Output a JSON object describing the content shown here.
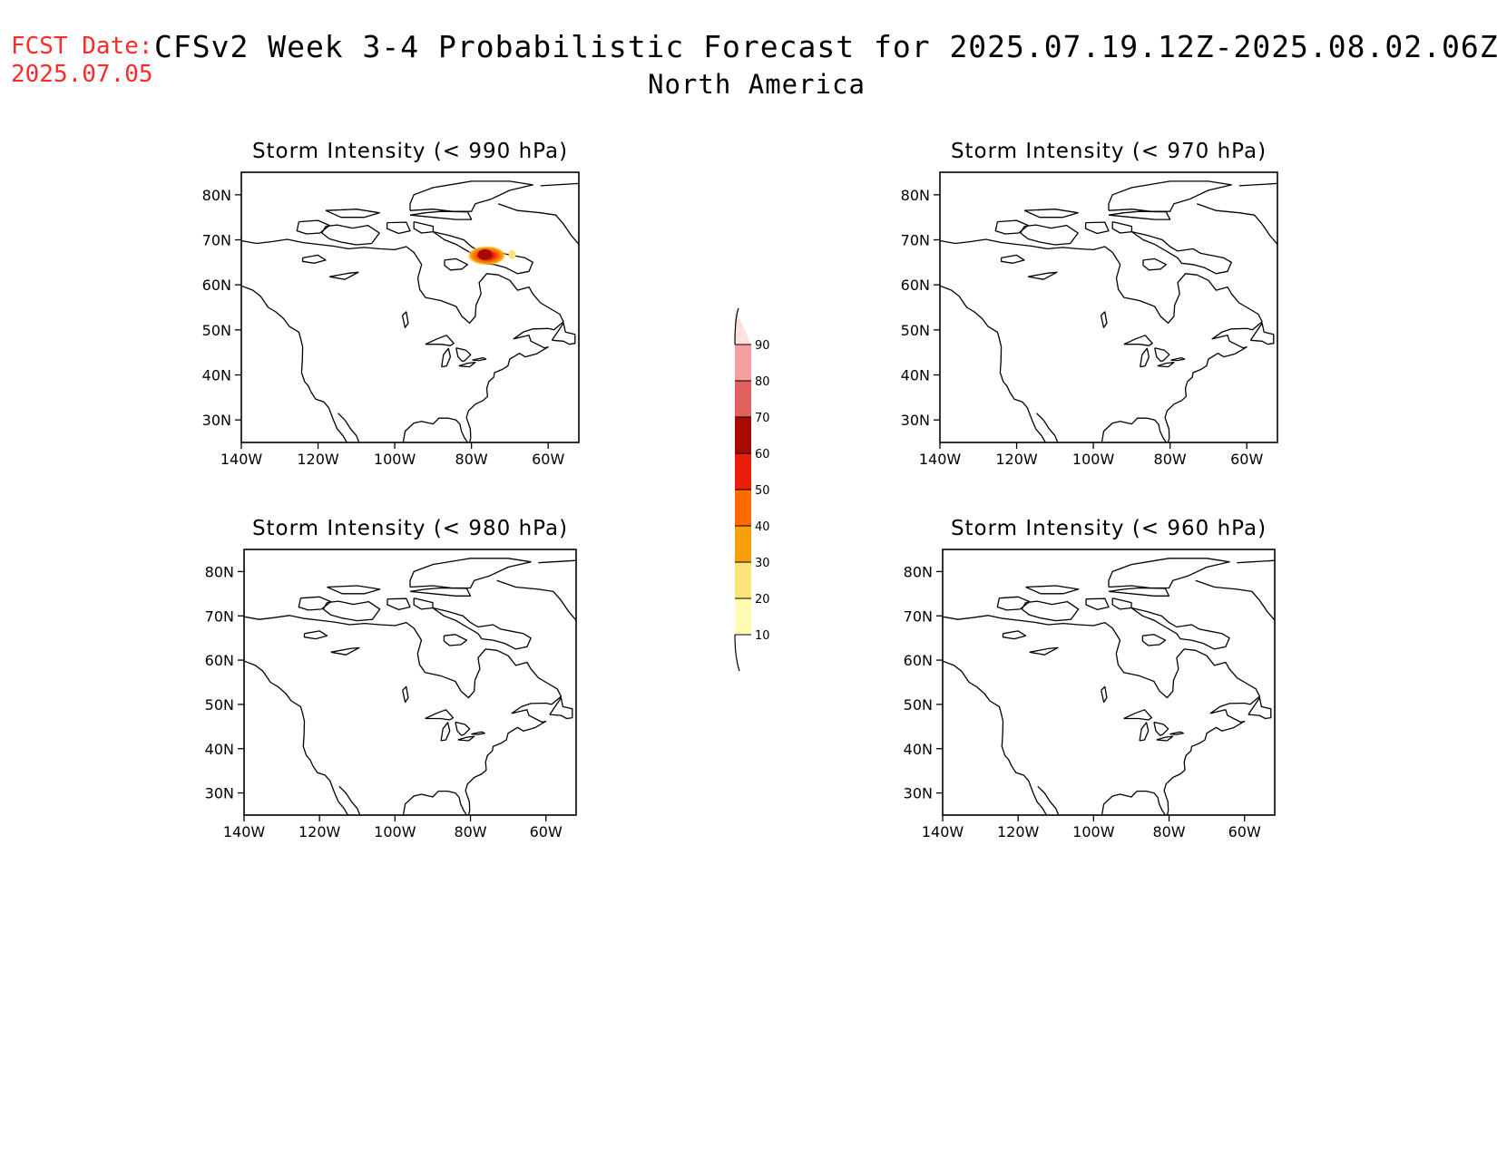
{
  "header": {
    "fcst_label": "FCST Date:",
    "fcst_date": "2025.07.05",
    "title": "CFSv2 Week 3-4 Probabilistic Forecast for 2025.07.19.12Z-2025.08.02.06Z",
    "subtitle": "North America"
  },
  "colors": {
    "fcst_text": "#ff2a2a",
    "levels": [
      "#fffab4",
      "#fde47a",
      "#f7a00a",
      "#ff6a00",
      "#e81e0a",
      "#a60a00",
      "#e06060",
      "#f5a0a0",
      "#fde0e0"
    ]
  },
  "chart_data": [
    {
      "type": "map",
      "title": "Storm Intensity (< 990 hPa)",
      "lat_ticks": [
        "30N",
        "40N",
        "50N",
        "60N",
        "70N",
        "80N"
      ],
      "lon_ticks": [
        "140W",
        "120W",
        "100W",
        "80W",
        "60W"
      ],
      "hotspot": {
        "lon": -76,
        "lat": 66.5,
        "max_prob": 65
      }
    },
    {
      "type": "map",
      "title": "Storm Intensity (< 970 hPa)",
      "lat_ticks": [
        "30N",
        "40N",
        "50N",
        "60N",
        "70N",
        "80N"
      ],
      "lon_ticks": [
        "140W",
        "120W",
        "100W",
        "80W",
        "60W"
      ]
    },
    {
      "type": "map",
      "title": "Storm Intensity (< 980 hPa)",
      "lat_ticks": [
        "30N",
        "40N",
        "50N",
        "60N",
        "70N",
        "80N"
      ],
      "lon_ticks": [
        "140W",
        "120W",
        "100W",
        "80W",
        "60W"
      ]
    },
    {
      "type": "map",
      "title": "Storm Intensity (< 960 hPa)",
      "lat_ticks": [
        "30N",
        "40N",
        "50N",
        "60N",
        "70N",
        "80N"
      ],
      "lon_ticks": [
        "140W",
        "120W",
        "100W",
        "80W",
        "60W"
      ]
    }
  ],
  "colorbar": {
    "labels": [
      "10",
      "20",
      "30",
      "40",
      "50",
      "60",
      "70",
      "80",
      "90"
    ]
  }
}
